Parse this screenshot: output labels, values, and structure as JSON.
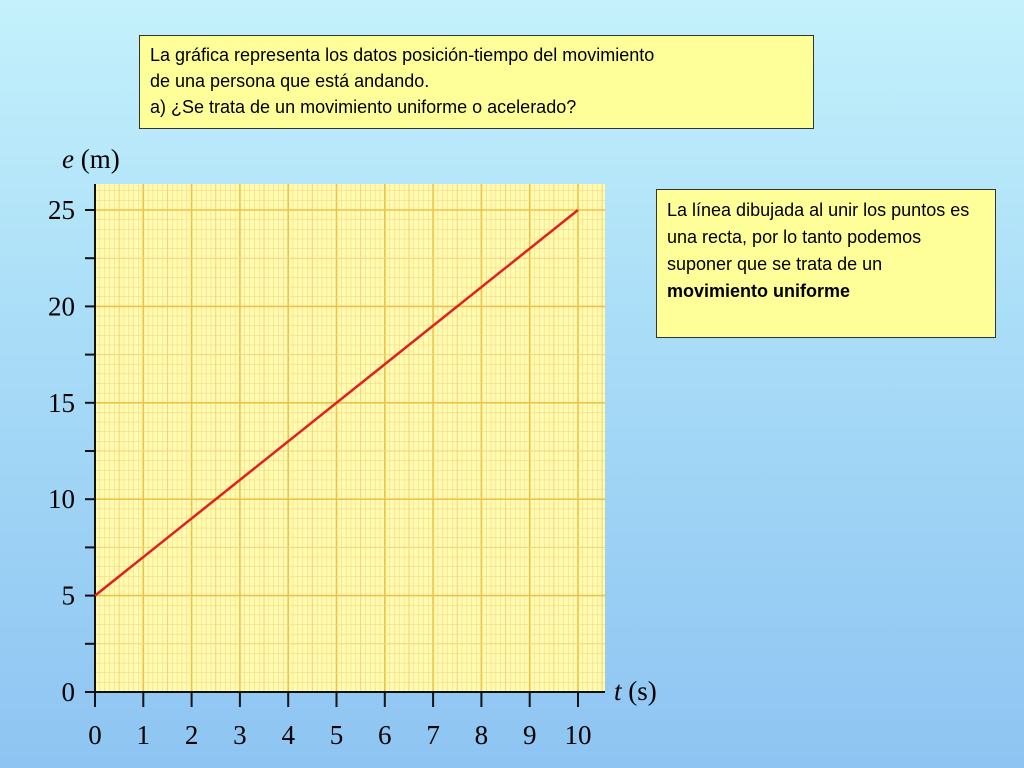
{
  "question": {
    "line1": "La gráfica representa los datos posición-tiempo del movimiento",
    "line2": "de una persona que está andando.",
    "line3": "a) ¿Se trata de un movimiento uniforme o acelerado?"
  },
  "answer": {
    "text": "La línea dibujada al unir los puntos es una recta, por lo tanto podemos suponer que se trata de un",
    "bold": "movimiento uniforme"
  },
  "colors": {
    "grid_fill": "#fffbb0",
    "grid_minor": "#f5d27a",
    "grid_major": "#eec24a",
    "line": "#e02020",
    "axis": "#111111"
  },
  "chart_data": {
    "type": "line",
    "x": [
      0,
      10
    ],
    "y": [
      5,
      25
    ],
    "xlim": [
      0,
      10
    ],
    "ylim": [
      0,
      25
    ],
    "xticks": [
      "0",
      "1",
      "2",
      "3",
      "4",
      "5",
      "6",
      "7",
      "8",
      "9",
      "10"
    ],
    "yticks": [
      "0",
      "5",
      "10",
      "15",
      "20",
      "25"
    ],
    "xlabel_var": "t",
    "xlabel_unit": "(s)",
    "ylabel_var": "e",
    "ylabel_unit": "(m)",
    "grid": true
  }
}
